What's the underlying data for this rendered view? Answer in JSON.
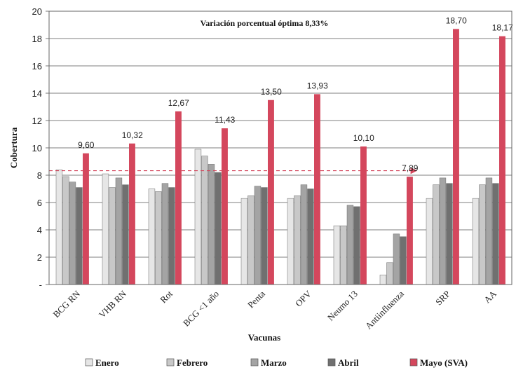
{
  "chart_data": {
    "type": "bar",
    "xlabel": "Vacunas",
    "ylabel": "Cobertura",
    "ylim": [
      0,
      20
    ],
    "yticks": [
      0,
      2,
      4,
      6,
      8,
      10,
      12,
      14,
      16,
      18,
      20
    ],
    "ytick_labels": [
      "-",
      "2",
      "4",
      "6",
      "8",
      "10",
      "12",
      "14",
      "16",
      "18",
      "20"
    ],
    "grid": true,
    "legend_position": "bottom",
    "categories": [
      "BCG RN",
      "VHB RN",
      "Rot",
      "BCG <1 año",
      "Penta",
      "OPV",
      "Neumo 13",
      "Antiinfluenza",
      "SRP",
      "AA"
    ],
    "series": [
      {
        "name": "Enero",
        "color": "#e6e6e6",
        "values": [
          8.4,
          8.1,
          7.0,
          9.9,
          6.3,
          6.3,
          4.3,
          0.7,
          6.3,
          6.3
        ]
      },
      {
        "name": "Febrero",
        "color": "#c8c8c8",
        "values": [
          7.9,
          7.1,
          6.8,
          9.4,
          6.5,
          6.5,
          4.3,
          1.6,
          7.3,
          7.3
        ]
      },
      {
        "name": "Marzo",
        "color": "#a4a4a4",
        "values": [
          7.5,
          7.8,
          7.4,
          8.8,
          7.2,
          7.3,
          5.8,
          3.7,
          7.8,
          7.8
        ]
      },
      {
        "name": "Abril",
        "color": "#707070",
        "values": [
          7.1,
          7.3,
          7.1,
          8.2,
          7.1,
          7.0,
          5.7,
          3.5,
          7.4,
          7.4
        ]
      },
      {
        "name": "Mayo (SVA)",
        "color": "#d4475d",
        "values": [
          9.6,
          10.32,
          12.67,
          11.43,
          13.5,
          13.93,
          10.1,
          7.89,
          18.7,
          18.17
        ]
      }
    ],
    "data_labels": [
      "9,60",
      "10,32",
      "12,67",
      "11,43",
      "13,50",
      "13,93",
      "10,10",
      "7,89",
      "18,70",
      "18,17"
    ],
    "reference_line": {
      "value": 8.33,
      "color": "#d4475d",
      "style": "dashed",
      "arrow": true
    },
    "annotation": "Variación porcentual óptima 8,33%"
  }
}
